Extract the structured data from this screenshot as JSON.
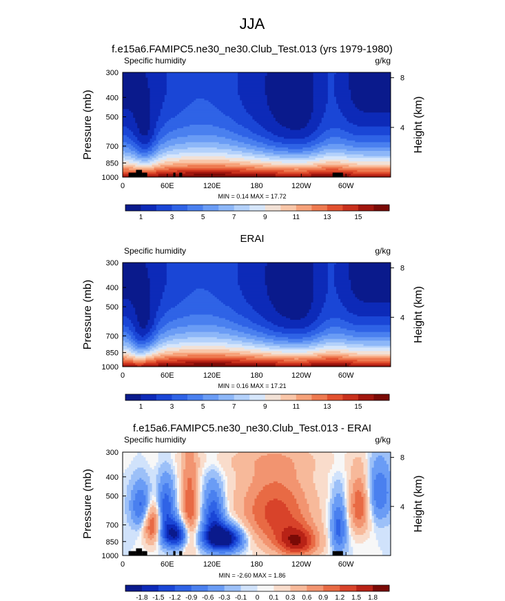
{
  "figure": {
    "title": "JJA"
  },
  "chart_data": [
    {
      "type": "heatmap",
      "title": "f.e15a6.FAMIPC5.ne30_ne30.Club_Test.013 (yrs 1979-1980)",
      "left_label": "Specific humidity",
      "right_label": "g/kg",
      "ylabel": "Pressure (mb)",
      "y2label": "Height (km)",
      "yticks": [
        "300",
        "400",
        "500",
        "700",
        "850",
        "1000"
      ],
      "ytick_values": [
        300,
        400,
        500,
        700,
        850,
        1000
      ],
      "y2ticks": [
        "8",
        "4"
      ],
      "y2tick_values": [
        8,
        4
      ],
      "xticks": [
        "0",
        "60E",
        "120E",
        "180",
        "120W",
        "60W"
      ],
      "xtick_values": [
        0,
        60,
        120,
        180,
        240,
        300
      ],
      "xlim": [
        0,
        360
      ],
      "ylim": [
        1000,
        300
      ],
      "min_max_text": "MIN =   0.14   MAX =   17.72",
      "stats": {
        "min": 0.14,
        "max": 17.72
      },
      "colorbar": {
        "tick_labels": [
          "1",
          "3",
          "5",
          "7",
          "9",
          "11",
          "13",
          "15"
        ],
        "tick_index": [
          1,
          3,
          5,
          7,
          9,
          11,
          13,
          15
        ],
        "colors": [
          "#0a1a8c",
          "#0d2ab8",
          "#1a46d6",
          "#2f63e6",
          "#4a80ef",
          "#6a9cf5",
          "#8db7f8",
          "#b3d1fb",
          "#d6e6fb",
          "#f2e1d6",
          "#f9c6a8",
          "#f6a27a",
          "#ee7a50",
          "#e2512f",
          "#c8301c",
          "#a1160e",
          "#7a0a06"
        ]
      },
      "field": "humidity",
      "topo": [
        [
          8,
          18,
          950
        ],
        [
          18,
          26,
          920
        ],
        [
          26,
          33,
          950
        ],
        [
          68,
          71,
          950
        ],
        [
          76,
          80,
          950
        ],
        [
          282,
          296,
          950
        ]
      ]
    },
    {
      "type": "heatmap",
      "title": "ERAI",
      "left_label": "Specific humidity",
      "right_label": "g/kg",
      "ylabel": "Pressure (mb)",
      "y2label": "Height (km)",
      "yticks": [
        "300",
        "400",
        "500",
        "700",
        "850",
        "1000"
      ],
      "ytick_values": [
        300,
        400,
        500,
        700,
        850,
        1000
      ],
      "y2ticks": [
        "8",
        "4"
      ],
      "y2tick_values": [
        8,
        4
      ],
      "xticks": [
        "0",
        "60E",
        "120E",
        "180",
        "120W",
        "60W"
      ],
      "xtick_values": [
        0,
        60,
        120,
        180,
        240,
        300
      ],
      "xlim": [
        0,
        360
      ],
      "ylim": [
        1000,
        300
      ],
      "min_max_text": "MIN =   0.16   MAX =   17.21",
      "stats": {
        "min": 0.16,
        "max": 17.21
      },
      "colorbar": {
        "tick_labels": [
          "1",
          "3",
          "5",
          "7",
          "9",
          "11",
          "13",
          "15"
        ],
        "tick_index": [
          1,
          3,
          5,
          7,
          9,
          11,
          13,
          15
        ],
        "colors": [
          "#0a1a8c",
          "#0d2ab8",
          "#1a46d6",
          "#2f63e6",
          "#4a80ef",
          "#6a9cf5",
          "#8db7f8",
          "#b3d1fb",
          "#d6e6fb",
          "#f2e1d6",
          "#f9c6a8",
          "#f6a27a",
          "#ee7a50",
          "#e2512f",
          "#c8301c",
          "#a1160e",
          "#7a0a06"
        ]
      },
      "field": "humidity",
      "topo": []
    },
    {
      "type": "heatmap",
      "title": "f.e15a6.FAMIPC5.ne30_ne30.Club_Test.013 - ERAI",
      "left_label": "Specific humidity",
      "right_label": "g/kg",
      "ylabel": "Pressure (mb)",
      "y2label": "Height (km)",
      "yticks": [
        "300",
        "400",
        "500",
        "700",
        "850",
        "1000"
      ],
      "ytick_values": [
        300,
        400,
        500,
        700,
        850,
        1000
      ],
      "y2ticks": [
        "8",
        "4"
      ],
      "y2tick_values": [
        8,
        4
      ],
      "xticks": [
        "0",
        "60E",
        "120E",
        "180",
        "120W",
        "60W"
      ],
      "xtick_values": [
        0,
        60,
        120,
        180,
        240,
        300
      ],
      "xlim": [
        0,
        360
      ],
      "ylim": [
        1000,
        300
      ],
      "min_max_text": "MIN =  -2.60   MAX =   1.86",
      "stats": {
        "min": -2.6,
        "max": 1.86
      },
      "colorbar": {
        "tick_labels": [
          "-1.8",
          "-1.5",
          "-1.2",
          "-0.9",
          "-0.6",
          "-0.3",
          "-0.1",
          "0",
          "0.1",
          "0.3",
          "0.6",
          "0.9",
          "1.2",
          "1.5",
          "1.8"
        ],
        "tick_index": [
          1,
          2,
          3,
          4,
          5,
          6,
          7,
          8,
          9,
          10,
          11,
          12,
          13,
          14,
          15
        ],
        "colors": [
          "#0a1a8c",
          "#0d2ab8",
          "#1a46d6",
          "#2f63e6",
          "#4a80ef",
          "#6a9cf5",
          "#9cc0f8",
          "#d0e2fb",
          "#f7f7f7",
          "#f9dccb",
          "#f7b99a",
          "#f29470",
          "#e86a44",
          "#d8432a",
          "#b82216",
          "#7a0a06"
        ]
      },
      "field": "diff",
      "topo": [
        [
          8,
          18,
          950
        ],
        [
          18,
          26,
          920
        ],
        [
          26,
          33,
          950
        ],
        [
          68,
          71,
          950
        ],
        [
          76,
          80,
          950
        ],
        [
          282,
          296,
          950
        ]
      ]
    }
  ]
}
